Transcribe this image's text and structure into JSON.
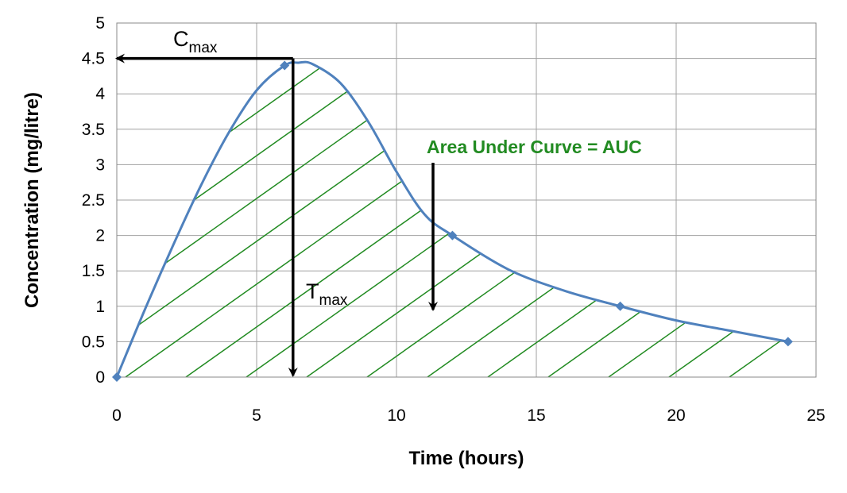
{
  "chart_data": {
    "type": "line",
    "title": "",
    "xlabel": "Time (hours)",
    "ylabel": "Concentration (mg/litre)",
    "xlim": [
      0,
      25
    ],
    "ylim": [
      0,
      5
    ],
    "x_ticks": [
      0,
      5,
      10,
      15,
      20,
      25
    ],
    "y_ticks": [
      0,
      0.5,
      1,
      1.5,
      2,
      2.5,
      3,
      3.5,
      4,
      4.5,
      5
    ],
    "grid": true,
    "legend": "none",
    "series": [
      {
        "x": [
          0,
          6,
          12,
          18,
          24
        ],
        "y": [
          0,
          4.4,
          2.0,
          1.0,
          0.5
        ],
        "color": "#4F81BD"
      }
    ],
    "curve": {
      "x": [
        0,
        1,
        2,
        3,
        4,
        5,
        6,
        6.5,
        7,
        8,
        9,
        10,
        11,
        12,
        14,
        16,
        18,
        20,
        22,
        24
      ],
      "y": [
        0,
        0.95,
        1.85,
        2.7,
        3.45,
        4.05,
        4.4,
        4.44,
        4.42,
        4.15,
        3.6,
        2.9,
        2.3,
        2.0,
        1.52,
        1.22,
        1.0,
        0.8,
        0.65,
        0.5
      ]
    },
    "annotations": {
      "cmax": {
        "main": "C",
        "sub": "max",
        "value": 4.5
      },
      "tmax": {
        "main": "T",
        "sub": "max",
        "value": 6.3
      },
      "auc": {
        "label": "Area Under Curve = AUC",
        "color": "#228B22"
      }
    },
    "colors": {
      "line": "#4F81BD",
      "hatch": "#228B22",
      "grid": "#A0A0A0"
    }
  }
}
